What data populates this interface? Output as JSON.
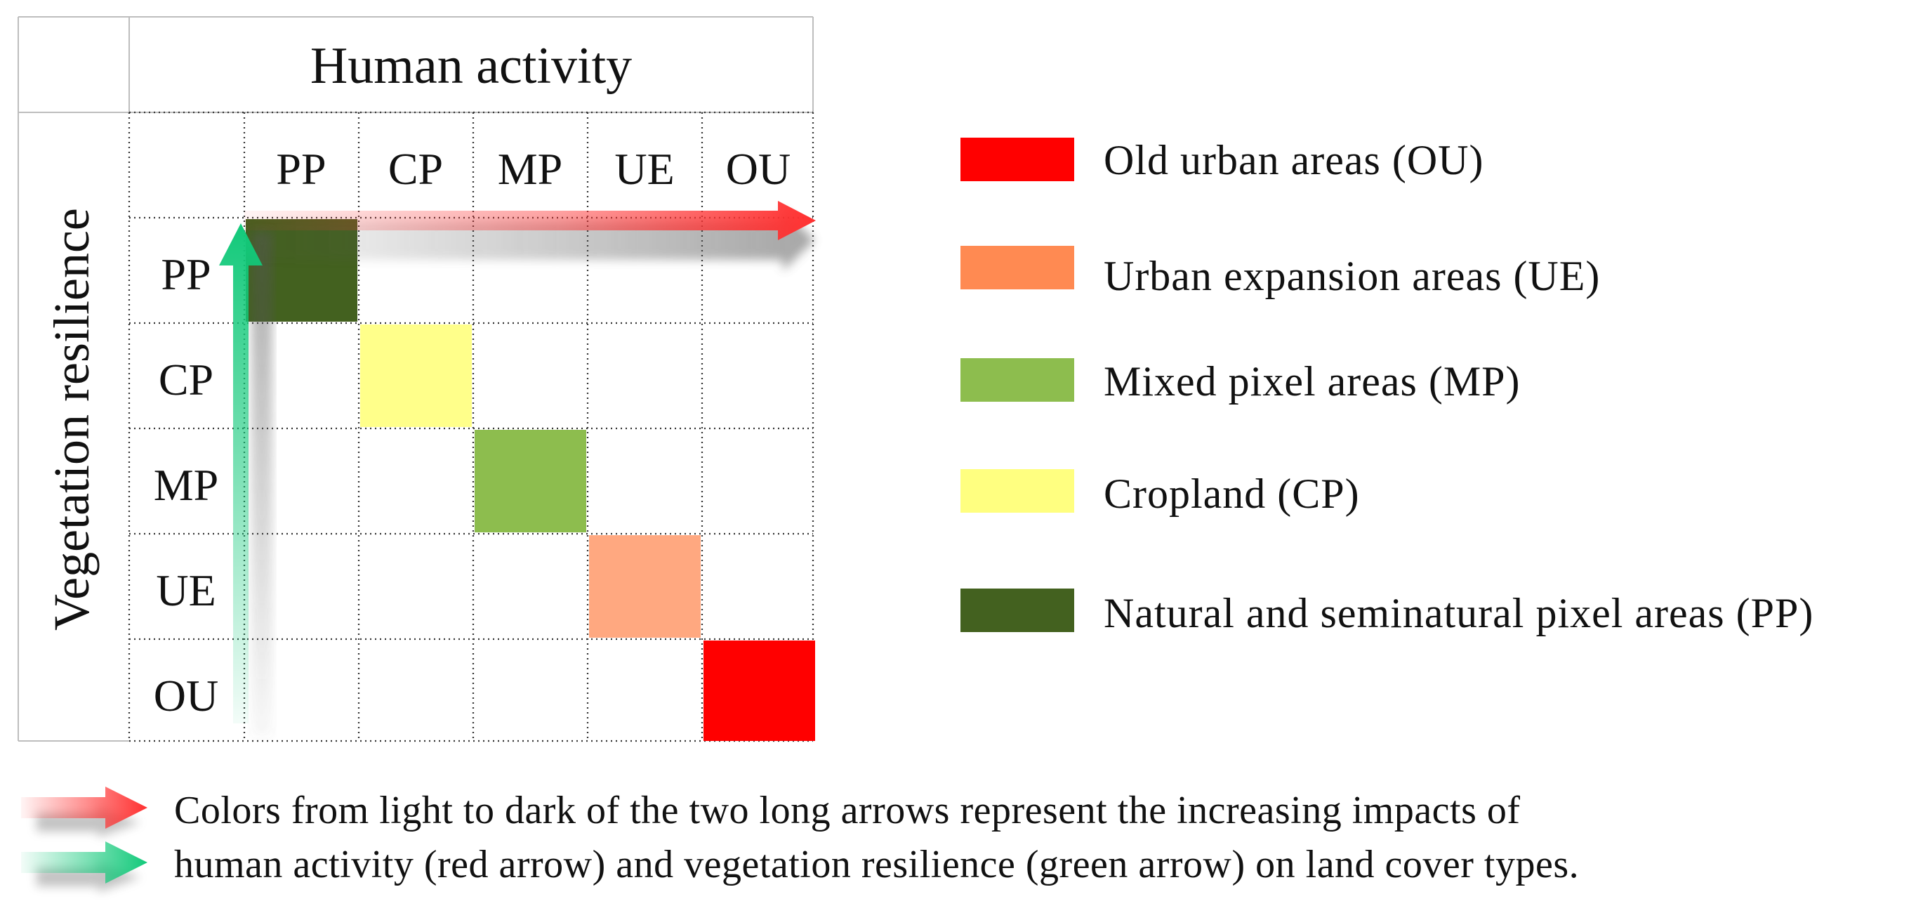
{
  "matrix": {
    "title": "Human activity",
    "y_axis_title": "Vegetation resilience",
    "column_headers": [
      "PP",
      "CP",
      "MP",
      "UE",
      "OU"
    ],
    "row_headers": [
      "PP",
      "CP",
      "MP",
      "UE",
      "OU"
    ],
    "diagonal_colors": [
      "#43611F",
      "#FFFF8A",
      "#8DBD4E",
      "#FFA880",
      "#FF0000"
    ]
  },
  "legend": {
    "items": [
      {
        "label": "Old urban areas (OU)",
        "color": "#FF0000"
      },
      {
        "label": "Urban expansion areas (UE)",
        "color": "#FF8A52"
      },
      {
        "label": "Mixed pixel areas (MP)",
        "color": "#8DBD4E"
      },
      {
        "label": "Cropland (CP)",
        "color": "#FFFF80"
      },
      {
        "label": "Natural and seminatural pixel areas (PP)",
        "color": "#43611F"
      }
    ]
  },
  "arrows": {
    "human_activity_color": "#FF3030",
    "vegetation_resilience_color": "#12C97A"
  },
  "note": {
    "line1": "Colors from light to dark of the two long arrows represent the increasing impacts of",
    "line2": "human activity (red arrow) and vegetation resilience (green arrow) on land cover types."
  }
}
